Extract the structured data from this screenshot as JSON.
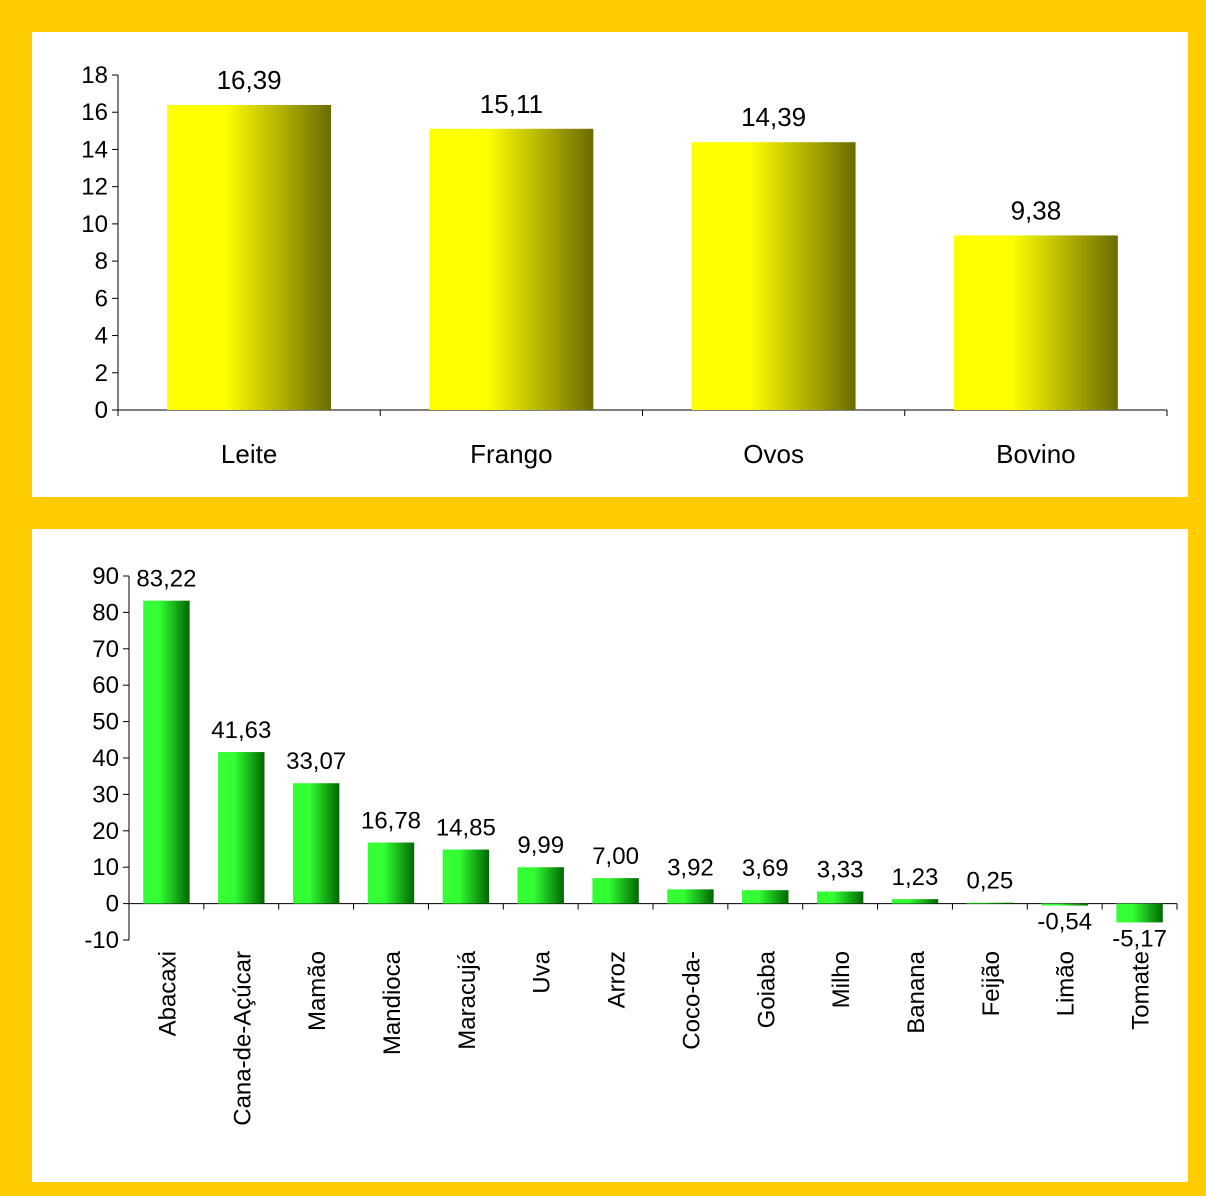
{
  "chart_data": [
    {
      "type": "bar",
      "categories": [
        "Leite",
        "Frango",
        "Ovos",
        "Bovino"
      ],
      "values": [
        16.39,
        15.11,
        14.39,
        9.38
      ],
      "value_labels": [
        "16,39",
        "15,11",
        "14,39",
        "9,38"
      ],
      "yticks": [
        "0",
        "2",
        "4",
        "6",
        "8",
        "10",
        "12",
        "14",
        "16",
        "18"
      ],
      "ylim": [
        0,
        18
      ],
      "ytick_step": 2,
      "grid": false,
      "legend": "none",
      "bar_color_light": "#ffff00",
      "bar_color_dark": "#6b6b00"
    },
    {
      "type": "bar",
      "categories": [
        "Abacaxi",
        "Cana-de-Açúcar",
        "Mamão",
        "Mandioca",
        "Maracujá",
        "Uva",
        "Arroz",
        "Coco-da-",
        "Goiaba",
        "Milho",
        "Banana",
        "Feijão",
        "Limão",
        "Tomate"
      ],
      "values": [
        83.22,
        41.63,
        33.07,
        16.78,
        14.85,
        9.99,
        7.0,
        3.92,
        3.69,
        3.33,
        1.23,
        0.25,
        -0.54,
        -5.17
      ],
      "value_labels": [
        "83,22",
        "41,63",
        "33,07",
        "16,78",
        "14,85",
        "9,99",
        "7,00",
        "3,92",
        "3,69",
        "3,33",
        "1,23",
        "0,25",
        "-0,54",
        "-5,17"
      ],
      "yticks": [
        "-10",
        "0",
        "10",
        "20",
        "30",
        "40",
        "50",
        "60",
        "70",
        "80",
        "90"
      ],
      "ylim": [
        -10,
        90
      ],
      "ytick_step": 10,
      "grid": false,
      "legend": "none",
      "bar_color_light": "#33ff33",
      "bar_color_dark": "#006600"
    }
  ]
}
